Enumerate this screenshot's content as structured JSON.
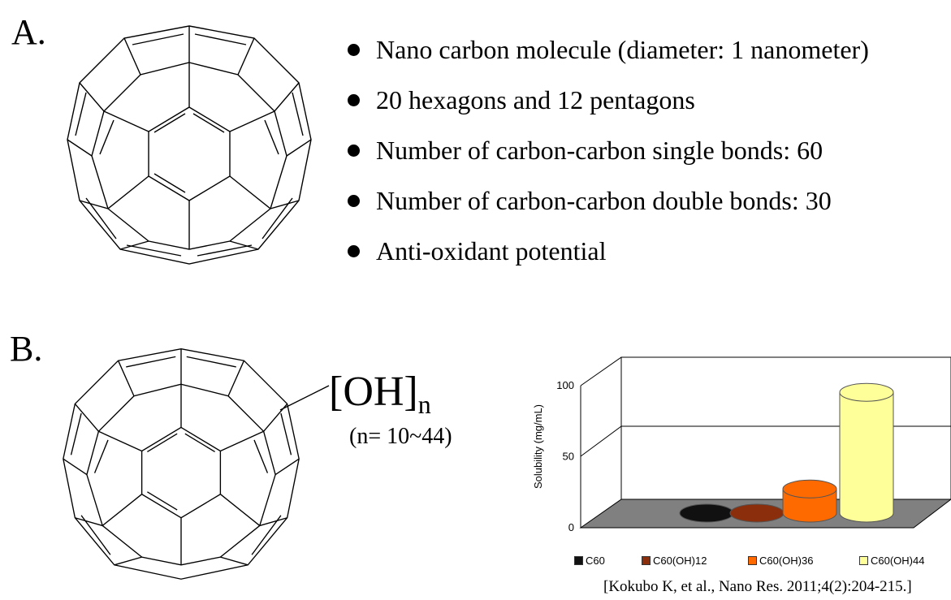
{
  "panel_a": {
    "label": "A.",
    "bullets": [
      "Nano carbon molecule (diameter:  1 nanometer)",
      "20 hexagons  and 12 pentagons",
      "Number  of carbon-carbon single bonds:  60",
      "Number  of carbon-carbon double bonds:  30",
      "Anti-oxidant  potential"
    ]
  },
  "panel_b": {
    "label": "B.",
    "group_base": "[OH]",
    "group_subscript": "n",
    "n_range": "(n= 10~44)"
  },
  "chart_data": {
    "type": "bar",
    "style": "3d-cylinder",
    "categories": [
      "C60",
      "C60(OH)12",
      "C60(OH)36",
      "C60(OH)44"
    ],
    "values": [
      0,
      0,
      17,
      85
    ],
    "colors": [
      "#111111",
      "#8a2e0c",
      "#ff6a00",
      "#ffff99"
    ],
    "ylabel": "Solubility (mg/mL)",
    "yticks": [
      0,
      50,
      100
    ],
    "ylim": [
      0,
      100
    ],
    "legend_position": "bottom",
    "grid": true
  },
  "citation": "[Kokubo K, et al., Nano Res. 2011;4(2):204-215.]"
}
